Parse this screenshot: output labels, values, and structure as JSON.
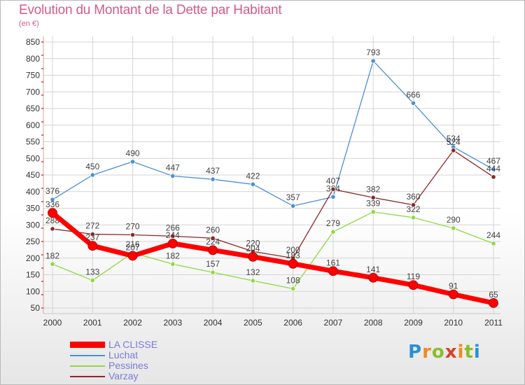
{
  "header": {
    "title": "Evolution du Montant de la Dette par Habitant",
    "subtitle": "(en €)"
  },
  "logo": {
    "text": "Proxiti"
  },
  "chart_data": {
    "type": "line",
    "title": "Evolution du Montant de la Dette par Habitant",
    "subtitle": "(en €)",
    "x": [
      "2000",
      "2001",
      "2002",
      "2003",
      "2004",
      "2005",
      "2006",
      "2007",
      "2008",
      "2009",
      "2010",
      "2011"
    ],
    "yticks": [
      50,
      100,
      150,
      200,
      250,
      300,
      350,
      400,
      450,
      500,
      550,
      600,
      650,
      700,
      750,
      800,
      850
    ],
    "ylim": [
      40,
      860
    ],
    "grid": true,
    "legend_position": "bottom-left",
    "series": [
      {
        "name": "LA CLISSE",
        "color": "#ff0000",
        "emphasis": true,
        "values": [
          336,
          237,
          207,
          244,
          224,
          204,
          183,
          161,
          141,
          119,
          91,
          65
        ],
        "labels": [
          "336",
          "237",
          "207",
          "244",
          "224",
          "204",
          "183",
          "161",
          "141",
          "119",
          "91",
          "65"
        ]
      },
      {
        "name": "Luchat",
        "color": "#4a90d6",
        "values": [
          376,
          450,
          490,
          447,
          437,
          422,
          357,
          384,
          793,
          666,
          534,
          467
        ],
        "labels": [
          "376",
          "450",
          "490",
          "447",
          "437",
          "422",
          "357",
          "384",
          "793",
          "666",
          "534",
          "467"
        ]
      },
      {
        "name": "Pessines",
        "color": "#8fd93f",
        "values": [
          182,
          133,
          216,
          182,
          157,
          132,
          108,
          279,
          339,
          322,
          290,
          244
        ],
        "labels": [
          "182",
          "133",
          "216",
          "182",
          "157",
          "132",
          "108",
          "279",
          "339",
          "322",
          "290",
          "244"
        ]
      },
      {
        "name": "Varzay",
        "color": "#8b2a2a",
        "values": [
          288,
          272,
          270,
          266,
          260,
          220,
          200,
          407,
          382,
          360,
          524,
          444
        ],
        "labels": [
          "288",
          "272",
          "270",
          "266",
          "260",
          "220",
          "200",
          "407",
          "382",
          "360",
          "524",
          "444"
        ]
      }
    ]
  }
}
